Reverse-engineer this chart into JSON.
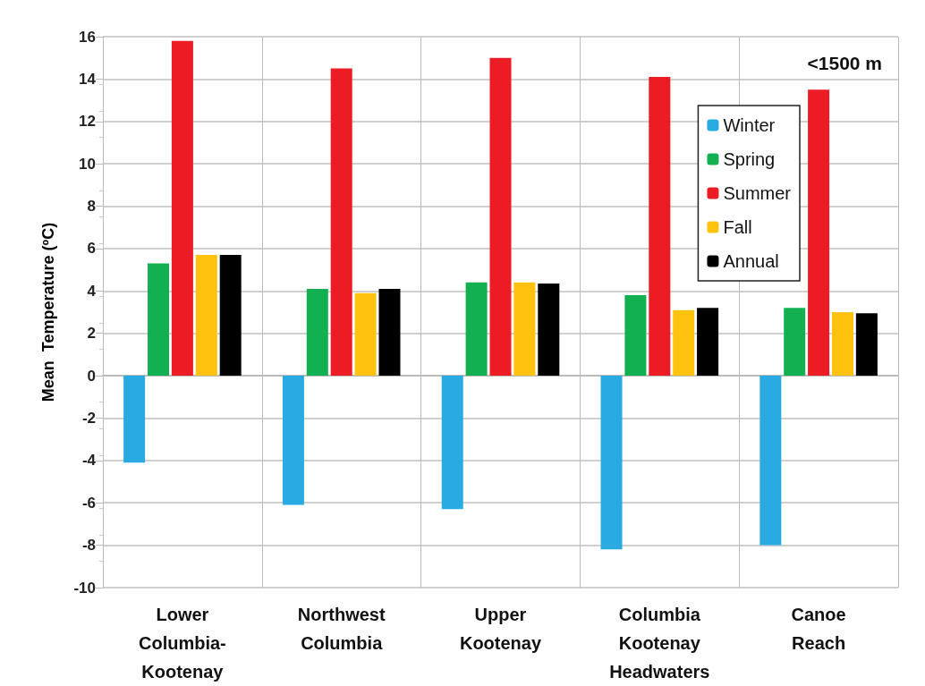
{
  "chart_data": {
    "type": "bar",
    "ylabel": "Mean  Temperature (ºC)",
    "categories": [
      "Lower Columbia-Kootenay",
      "Northwest Columbia",
      "Upper Kootenay",
      "Columbia Kootenay Headwaters",
      "Canoe Reach"
    ],
    "series": [
      {
        "name": "Winter",
        "color": "#29abe2",
        "values": [
          -4.1,
          -6.1,
          -6.3,
          -8.2,
          -8.0
        ]
      },
      {
        "name": "Spring",
        "color": "#12b050",
        "values": [
          5.3,
          4.1,
          4.4,
          3.8,
          3.2
        ]
      },
      {
        "name": "Summer",
        "color": "#ec1c24",
        "values": [
          15.8,
          14.5,
          15.0,
          14.1,
          13.5
        ]
      },
      {
        "name": "Fall",
        "color": "#ffc30f",
        "values": [
          5.7,
          3.9,
          4.4,
          3.1,
          3.0
        ]
      },
      {
        "name": "Annual",
        "color": "#000000",
        "values": [
          5.7,
          4.1,
          4.35,
          3.2,
          2.95
        ]
      }
    ],
    "ylim": [
      -10,
      16
    ],
    "yticks": [
      -10,
      -8,
      -6,
      -4,
      -2,
      0,
      2,
      4,
      6,
      8,
      10,
      12,
      14,
      16
    ],
    "grid": true,
    "legend": "top right",
    "annotations": [
      "<1500 m"
    ]
  }
}
